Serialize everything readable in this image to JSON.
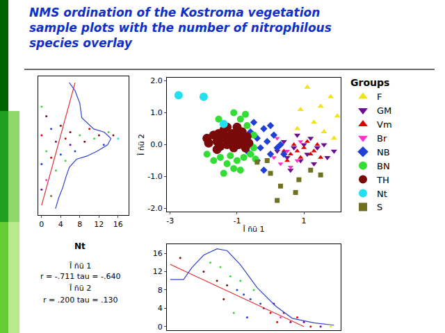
{
  "title_lines": [
    "NMS ordination of the Kostroma vegetation",
    "sample plots with the number of nitrophilous",
    "species overlay"
  ],
  "chart_data": [
    {
      "type": "scatter",
      "xlabel": "Î ñü 1",
      "ylabel": "Î ñü 2",
      "legend_title": "Groups",
      "legend": "right",
      "grid": false,
      "xlim": [
        -3.1,
        2.1
      ],
      "xticks": [
        -3,
        -1,
        1
      ],
      "ylim": [
        -2.1,
        2.1
      ],
      "yticks": [
        {
          "value": 2,
          "label": "2.0"
        },
        {
          "value": 1,
          "label": "1.0"
        },
        {
          "value": 0,
          "label": "0.0"
        },
        {
          "value": -1,
          "label": "-1.0"
        },
        {
          "value": -2,
          "label": "-2.0"
        }
      ],
      "series": [
        {
          "name": "F",
          "color": "#f2e21a",
          "marker": "triangle-up",
          "x": [
            1.1,
            1.5,
            1.8,
            2.0,
            1.3,
            0.8,
            1.6,
            0.9,
            1.9
          ],
          "values": [
            1.8,
            1.2,
            1.5,
            0.9,
            0.7,
            0.5,
            0.4,
            1.1,
            0.2
          ]
        },
        {
          "name": "GM",
          "color": "#6a0d91",
          "marker": "triangle-down",
          "x": [
            0.2,
            0.4,
            0.5,
            0.7,
            0.8,
            0.9,
            1.0,
            1.1,
            1.2,
            1.3,
            1.4,
            1.6,
            1.7,
            1.9,
            0.6
          ],
          "values": [
            -0.2,
            0.1,
            -0.4,
            -0.1,
            0.3,
            -0.5,
            0.0,
            -0.3,
            0.2,
            -0.6,
            -0.1,
            0.0,
            -0.4,
            -0.2,
            -0.8
          ]
        },
        {
          "name": "Vm",
          "color": "#e00000",
          "marker": "triangle-up",
          "x": [
            0.4,
            0.6,
            0.7,
            0.8,
            0.9,
            1.0,
            1.1,
            1.2,
            1.3,
            1.4,
            0.5,
            1.5
          ],
          "values": [
            -0.2,
            -0.3,
            0.0,
            -0.2,
            -0.4,
            -0.1,
            0.1,
            -0.3,
            -0.2,
            0.0,
            -0.5,
            -0.4
          ]
        },
        {
          "name": "Br",
          "color": "#ff33cc",
          "marker": "triangle-down",
          "x": [
            0.1,
            0.3,
            0.5,
            0.6,
            0.8,
            0.2,
            0.9
          ],
          "values": [
            -0.4,
            -0.6,
            -0.2,
            -0.7,
            -0.5,
            0.2,
            0.1
          ]
        },
        {
          "name": "NB",
          "color": "#1f3fd6",
          "marker": "diamond",
          "x": [
            -0.6,
            -0.5,
            -0.4,
            -0.3,
            -0.2,
            -0.1,
            0.0,
            0.1,
            0.2,
            0.3,
            -0.4,
            -0.2,
            0.4,
            -0.7,
            0.0
          ],
          "values": [
            0.4,
            0.7,
            0.2,
            -0.1,
            0.5,
            0.1,
            -0.3,
            0.3,
            -0.1,
            0.0,
            -0.5,
            -0.8,
            -0.3,
            -0.2,
            0.6
          ]
        },
        {
          "name": "BN",
          "color": "#33dd33",
          "marker": "circle",
          "x": [
            -1.9,
            -1.7,
            -1.5,
            -1.3,
            -1.2,
            -1.0,
            -0.9,
            -0.8,
            -0.6,
            -0.5,
            -0.5,
            -0.7,
            -0.9,
            -1.1,
            -0.75,
            -1.4,
            -1.1,
            -0.6,
            -0.45,
            -1.55
          ],
          "values": [
            -0.3,
            -0.5,
            -0.4,
            -0.6,
            -0.35,
            -0.5,
            -0.8,
            -0.4,
            -0.3,
            -0.1,
            0.3,
            0.6,
            0.8,
            1.0,
            0.95,
            -0.9,
            -0.75,
            0.0,
            -0.45,
            0.8
          ]
        },
        {
          "name": "TH",
          "color": "#7a0a0a",
          "marker": "circle",
          "x": [
            -1.9,
            -1.85,
            -1.7,
            -1.6,
            -1.55,
            -1.5,
            -1.45,
            -1.4,
            -1.3,
            -1.25,
            -1.2,
            -1.15,
            -1.1,
            -1.05,
            -1.0,
            -0.95,
            -0.9,
            -0.85,
            -0.8,
            -0.75,
            -0.7,
            -0.65,
            -1.3,
            -1.0,
            -1.6
          ],
          "values": [
            0.2,
            0.05,
            0.3,
            0.1,
            0.35,
            -0.05,
            0.2,
            0.45,
            0.0,
            0.25,
            0.15,
            0.35,
            -0.1,
            0.1,
            0.3,
            0.0,
            0.2,
            0.4,
            0.1,
            -0.1,
            0.25,
            0.05,
            0.55,
            0.55,
            -0.15
          ]
        },
        {
          "name": "Nt",
          "color": "#22e0f0",
          "marker": "circle",
          "x": [
            -2.75,
            -2.0,
            -1.4
          ],
          "values": [
            1.55,
            1.5,
            0.65
          ]
        },
        {
          "name": "S",
          "color": "#707020",
          "marker": "square",
          "x": [
            -0.4,
            0.0,
            0.3,
            0.2,
            0.75,
            0.85,
            1.2,
            1.5,
            -0.1
          ],
          "values": [
            -0.55,
            -0.9,
            -1.3,
            -1.75,
            -1.5,
            -1.1,
            -0.8,
            -0.95,
            -0.5
          ]
        }
      ]
    },
    {
      "type": "scatter",
      "tick_labels": "x",
      "xlim": [
        -0.7,
        18.2
      ],
      "xticks": [
        0,
        4,
        8,
        12,
        16
      ],
      "ylim": [
        -2.2,
        2.15
      ],
      "series": [
        {
          "type": "scatter",
          "marker": "circle",
          "colors": [
            "#33dd33",
            "#e00000",
            "#1f3fd6",
            "#6a0d91",
            "#7a0a0a",
            "#33dd33",
            "#ff33cc",
            "#1f3fd6",
            "#e00000",
            "#707020",
            "#6a0d91",
            "#33dd33",
            "#7a0a0a",
            "#1f3fd6",
            "#e00000",
            "#33dd33",
            "#6a0d91",
            "#7a0a0a",
            "#1f3fd6",
            "#33dd33",
            "#7a0a0a",
            "#e00000",
            "#33dd33",
            "#7a0a0a",
            "#1f3fd6",
            "#33dd33",
            "#7a0a0a",
            "#22e0f0"
          ],
          "x": [
            0,
            0,
            0,
            0,
            1,
            1,
            1,
            2,
            2,
            2,
            3,
            3,
            4,
            4,
            5,
            5,
            6,
            6,
            7,
            8,
            9,
            10,
            11,
            12,
            13,
            14,
            15,
            16
          ],
          "values": [
            1.2,
            0.3,
            -0.6,
            -1.4,
            0.9,
            -0.2,
            -1.1,
            0.5,
            -0.4,
            -1.6,
            0.1,
            -0.8,
            0.6,
            -0.3,
            0.2,
            -0.5,
            0.0,
            0.4,
            -0.2,
            0.3,
            0.1,
            0.5,
            0.2,
            0.3,
            0.0,
            0.4,
            0.3,
            0.2
          ]
        },
        {
          "type": "line",
          "color": "#e03030",
          "x": [
            0,
            7
          ],
          "values": [
            -1.9,
            1.95
          ]
        },
        {
          "type": "line",
          "color": "#3040d0",
          "x": [
            5.8,
            7,
            8,
            8.4,
            10.9,
            13.1,
            14.5,
            13.8,
            11.6,
            9.5,
            7.3,
            5.8,
            5.1,
            4.4,
            3.6,
            2.9
          ],
          "values": [
            1.95,
            1.7,
            1.3,
            0.85,
            0.5,
            0.4,
            0.2,
            0.0,
            -0.2,
            -0.35,
            -0.45,
            -0.7,
            -1.0,
            -1.35,
            -1.65,
            -2.0
          ]
        }
      ]
    },
    {
      "type": "scatter",
      "tick_labels": "y",
      "xlim": [
        -3.1,
        2.1
      ],
      "ylim": [
        -0.8,
        18
      ],
      "yticks": [
        0,
        4,
        8,
        12,
        16
      ],
      "series": [
        {
          "type": "scatter",
          "marker": "circle",
          "colors": [
            "#7a0a0a",
            "#7a0a0a",
            "#33dd33",
            "#7a0a0a",
            "#33dd33",
            "#7a0a0a",
            "#33dd33",
            "#1f3fd6",
            "#33dd33",
            "#1f3fd6",
            "#1f3fd6",
            "#33dd33",
            "#1f3fd6",
            "#6a0d91",
            "#e00000",
            "#6a0d91",
            "#ff33cc",
            "#e00000",
            "#6a0d91",
            "#e00000",
            "#6a0d91",
            "#e00000",
            "#6a0d91",
            "#f2e21a",
            "#33dd33",
            "#1f3fd6",
            "#7a0a0a",
            "#e00000"
          ],
          "x": [
            -2.7,
            -2.0,
            -1.8,
            -1.6,
            -1.5,
            -1.3,
            -1.2,
            -1.0,
            -0.9,
            -0.8,
            -0.6,
            -0.5,
            -0.3,
            -0.2,
            0.0,
            0.1,
            0.3,
            0.4,
            0.6,
            0.8,
            1.0,
            1.2,
            1.5,
            1.8,
            -1.1,
            -0.7,
            -1.4,
            0.2
          ],
          "values": [
            15,
            12,
            14,
            10,
            13,
            9,
            11,
            8,
            10,
            7,
            6,
            8,
            5,
            4,
            3,
            5,
            2,
            3,
            1,
            2,
            1,
            0,
            0,
            0,
            3,
            2,
            6,
            1
          ]
        },
        {
          "type": "line",
          "color": "#e03030",
          "x": [
            -3.0,
            1.0
          ],
          "values": [
            13.6,
            0
          ]
        },
        {
          "type": "line",
          "color": "#3040d0",
          "x": [
            -3.0,
            -2.6,
            -2.35,
            -2.0,
            -1.6,
            -1.3,
            -0.9,
            -0.4,
            0.15,
            0.65,
            1.3,
            1.9
          ],
          "values": [
            10.3,
            10.3,
            12.9,
            15.6,
            17.0,
            16.6,
            13.5,
            8.5,
            4.5,
            1.8,
            0.8,
            0.3
          ]
        }
      ]
    }
  ],
  "stats": {
    "title": "Nt",
    "lines": [
      "Î ñü 1",
      "r = -.711 tau = -.640",
      "Î ñü 2",
      "r = .200 tau = .130"
    ]
  }
}
